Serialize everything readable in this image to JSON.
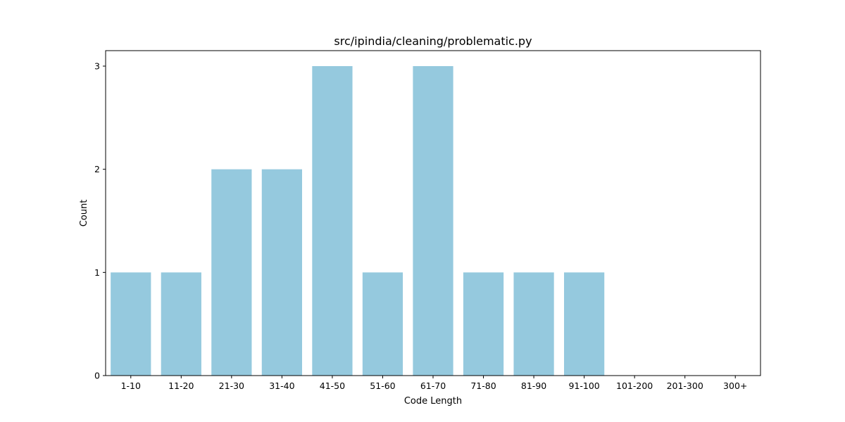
{
  "chart_data": {
    "type": "bar",
    "title": "src/ipindia/cleaning/problematic.py",
    "xlabel": "Code Length",
    "ylabel": "Count",
    "categories": [
      "1-10",
      "11-20",
      "21-30",
      "31-40",
      "41-50",
      "51-60",
      "61-70",
      "71-80",
      "81-90",
      "91-100",
      "101-200",
      "201-300",
      "300+"
    ],
    "values": [
      1,
      1,
      2,
      2,
      3,
      1,
      3,
      1,
      1,
      1,
      0,
      0,
      0
    ],
    "yticks": [
      "0",
      "1",
      "2",
      "3"
    ],
    "ylim": [
      0,
      3.15
    ],
    "bar_color": "#95c9de",
    "grid": false,
    "legend": "none"
  }
}
